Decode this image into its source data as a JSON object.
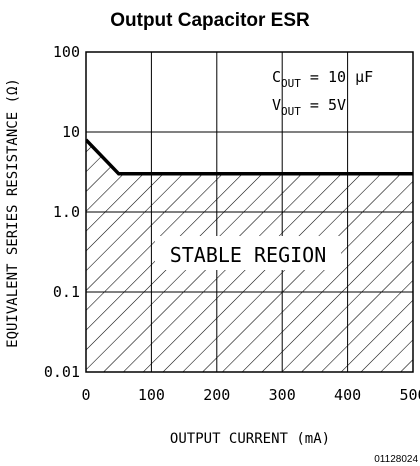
{
  "chart_data": {
    "type": "line",
    "title": "Output Capacitor ESR",
    "xlabel": "OUTPUT CURRENT (mA)",
    "ylabel": "EQUIVALENT SERIES RESISTANCE (Ω)",
    "xlim": [
      0,
      500
    ],
    "ylim": [
      0.01,
      100
    ],
    "yscale": "log",
    "grid": true,
    "x_ticks": [
      "0",
      "100",
      "200",
      "300",
      "400",
      "500"
    ],
    "y_ticks": [
      "0.01",
      "0.1",
      "1.0",
      "10",
      "100"
    ],
    "series": [
      {
        "x": [
          0,
          50,
          100,
          200,
          300,
          400,
          500
        ],
        "y": [
          8,
          3,
          3,
          3,
          3,
          3,
          3
        ]
      }
    ],
    "shaded_region_label": "STABLE REGION",
    "annotation": {
      "cout_main": "C",
      "cout_sub": "OUT",
      "cout_value": " = 10 μF",
      "vout_main": "V",
      "vout_sub": "OUT",
      "vout_value": " = 5V"
    },
    "figure_code": "01128024"
  }
}
